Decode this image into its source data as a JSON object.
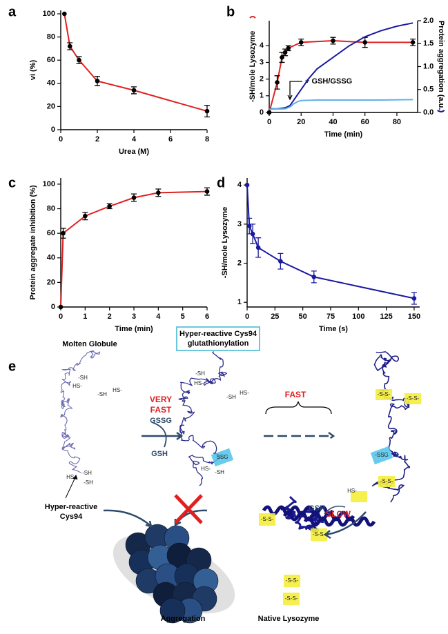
{
  "chart_data": [
    {
      "type": "line",
      "panel": "a",
      "xlabel": "Urea (M)",
      "ylabel": "vi (%)",
      "xlim": [
        0,
        8
      ],
      "ylim": [
        0,
        103
      ],
      "xticks": [
        0,
        2,
        4,
        6,
        8
      ],
      "yticks": [
        0,
        20,
        40,
        60,
        80,
        100
      ],
      "series": [
        {
          "color": "#e02020",
          "marker_color": "#000000",
          "markers": true,
          "x": [
            0.2,
            0.5,
            1,
            2,
            4,
            8
          ],
          "values": [
            100,
            72,
            60,
            42,
            34,
            16
          ],
          "errors": [
            0,
            3,
            3,
            4,
            3,
            5
          ]
        }
      ]
    },
    {
      "type": "line",
      "panel": "b",
      "xlabel": "Time (min)",
      "ylabel": "-SH/mole Lysozyme",
      "y2label": "Protein aggregation (a.u.)",
      "annotation": "+ GSH/GSSG",
      "xlim": [
        0,
        93
      ],
      "ylim": [
        0,
        5.5
      ],
      "y2lim": [
        0,
        2
      ],
      "xticks": [
        0,
        20,
        40,
        60,
        80
      ],
      "yticks": [
        0,
        1,
        2,
        3,
        4
      ],
      "y2ticks": [
        {
          "value": 0,
          "label": "0.0"
        },
        0.5,
        {
          "value": 1,
          "label": "1.0"
        },
        1.5,
        {
          "value": 2,
          "label": "2.0"
        }
      ],
      "series": [
        {
          "color": "#e02020",
          "marker_color": "#000000",
          "markers": true,
          "x": [
            0,
            5,
            8,
            10,
            12,
            20,
            40,
            60,
            90
          ],
          "values": [
            0,
            1.8,
            3.3,
            3.6,
            3.85,
            4.2,
            4.3,
            4.2,
            4.2
          ],
          "errors": [
            0,
            0.4,
            0.3,
            0.2,
            0.15,
            0.2,
            0.2,
            0.3,
            0.2
          ]
        },
        {
          "color": "#1a1aa0",
          "markers": false,
          "axis": "y2",
          "x": [
            0,
            5,
            10,
            13,
            15,
            18,
            20,
            25,
            30,
            40,
            50,
            60,
            70,
            80,
            90
          ],
          "values": [
            0.08,
            0.08,
            0.1,
            0.15,
            0.25,
            0.4,
            0.5,
            0.75,
            0.95,
            1.2,
            1.45,
            1.65,
            1.78,
            1.88,
            1.95
          ]
        },
        {
          "color": "#5fb0e8",
          "markers": false,
          "axis": "y2",
          "x": [
            0,
            10,
            13,
            15,
            18,
            20,
            30,
            50,
            70,
            90
          ],
          "values": [
            0.07,
            0.08,
            0.12,
            0.18,
            0.24,
            0.26,
            0.27,
            0.27,
            0.27,
            0.28
          ]
        }
      ]
    },
    {
      "type": "line",
      "panel": "c",
      "xlabel": "Time (min)",
      "ylabel": "Protein aggregate inhibition (%)",
      "xlim": [
        0,
        6
      ],
      "ylim": [
        0,
        105
      ],
      "xticks": [
        0,
        1,
        2,
        3,
        4,
        5,
        6
      ],
      "yticks": [
        0,
        20,
        40,
        60,
        80,
        100
      ],
      "series": [
        {
          "color": "#e02020",
          "marker_color": "#000000",
          "markers": true,
          "x": [
            0,
            0.1,
            1,
            2,
            3,
            4,
            6
          ],
          "values": [
            0,
            60,
            74,
            82,
            89,
            93,
            94
          ],
          "errors": [
            0,
            4,
            3,
            2,
            3,
            3,
            3
          ]
        }
      ]
    },
    {
      "type": "line",
      "panel": "d",
      "xlabel": "Time (s)",
      "ylabel": "-SH/mole Lysozyme",
      "xlim": [
        0,
        155
      ],
      "ylim": [
        0.88,
        4.18
      ],
      "xticks": [
        0,
        25,
        50,
        75,
        100,
        125,
        150
      ],
      "yticks": [
        1,
        2,
        3,
        4
      ],
      "series": [
        {
          "color": "#1a1aa0",
          "marker_color": "#1a1aa0",
          "markers": true,
          "x": [
            0,
            2,
            5,
            10,
            30,
            60,
            150
          ],
          "values": [
            4,
            2.95,
            2.75,
            2.4,
            2.05,
            1.65,
            1.1
          ],
          "errors": [
            0,
            0.2,
            0.25,
            0.25,
            0.2,
            0.15,
            0.15
          ]
        }
      ]
    }
  ],
  "diagram": {
    "panel": "e",
    "molten": "Molten Globule",
    "box_title": [
      "Hyper-reactive Cys94",
      "glutathionylation"
    ],
    "very_fast": [
      "VERY",
      "FAST"
    ],
    "gssg": "GSSG",
    "gsh_out": "GSH",
    "fast": "FAST",
    "cys94": [
      "Hyper-reactive",
      "Cys94"
    ],
    "gsh_in": "GSH",
    "slow": "SLOW",
    "aggregation": "Aggregation",
    "native": "Native Lysozyme",
    "sites": [
      "-SH",
      "HS-",
      "-SH",
      "HS-",
      "-SH",
      "HS-",
      "-SH",
      "-SH",
      "HS-",
      "-SH",
      "HS-",
      "SSG",
      "HS-",
      "-SH",
      "-S-S-",
      "-S-S-",
      "-SSG",
      "HS-",
      "-S-S-",
      "-S-S-",
      "-S-S-",
      "-S-S-",
      "-S-S-"
    ]
  }
}
